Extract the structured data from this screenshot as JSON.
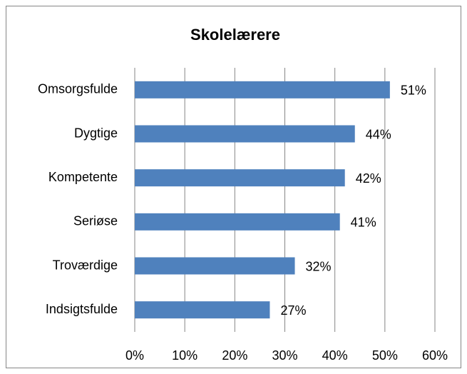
{
  "chart_data": {
    "type": "bar",
    "orientation": "horizontal",
    "title": "Skolelærere",
    "categories": [
      "Omsorgsfulde",
      "Dygtige",
      "Kompetente",
      "Seriøse",
      "Troværdige",
      "Indsigtsfulde"
    ],
    "values": [
      51,
      44,
      42,
      41,
      32,
      27
    ],
    "value_labels": [
      "51%",
      "44%",
      "42%",
      "41%",
      "32%",
      "27%"
    ],
    "color": "#4f81bd",
    "xlim": [
      0,
      60
    ],
    "xticks": [
      {
        "value": 0,
        "label": "0%"
      },
      {
        "value": 10,
        "label": "10%"
      },
      {
        "value": 20,
        "label": "20%"
      },
      {
        "value": 30,
        "label": "30%"
      },
      {
        "value": 40,
        "label": "40%"
      },
      {
        "value": 50,
        "label": "50%"
      },
      {
        "value": 60,
        "label": "60%"
      }
    ],
    "grid": true
  }
}
